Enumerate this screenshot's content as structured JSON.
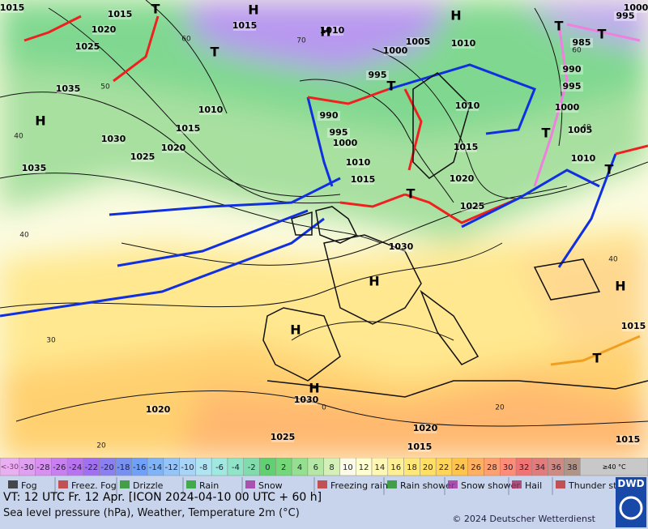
{
  "map": {
    "pressure_labels": [
      1015,
      1015,
      1020,
      1025,
      1015,
      1010,
      1005,
      1010,
      1000,
      995,
      1000,
      985,
      990,
      995,
      1000,
      1005,
      1010,
      995,
      1035,
      1010,
      990,
      1015,
      995,
      1030,
      1000,
      1020,
      1025,
      1010,
      1035,
      1010,
      1015,
      1015,
      1020,
      1025,
      1030,
      1015,
      1030,
      1020,
      1020,
      1025,
      1015,
      1015
    ],
    "centers": [
      "H",
      "H",
      "H",
      "H",
      "H",
      "H",
      "H",
      "H",
      "T",
      "T",
      "T",
      "T",
      "T",
      "T",
      "T",
      "T",
      "T"
    ],
    "temperature_labels": [
      "60",
      "70",
      "50",
      "40",
      "40",
      "30",
      "20",
      "0",
      "20",
      "40",
      "60",
      "40"
    ]
  },
  "scale": {
    "below": "<-30",
    "above": "≥40 °C",
    "steps": [
      {
        "value": -30,
        "color": "#e0a0f0"
      },
      {
        "value": -28,
        "color": "#d890f0"
      },
      {
        "value": -26,
        "color": "#c880f0"
      },
      {
        "value": -24,
        "color": "#b874f0"
      },
      {
        "value": -22,
        "color": "#a070f0"
      },
      {
        "value": -20,
        "color": "#8c80f0"
      },
      {
        "value": -18,
        "color": "#7890f0"
      },
      {
        "value": -16,
        "color": "#70a0f8"
      },
      {
        "value": -14,
        "color": "#80b4f8"
      },
      {
        "value": -12,
        "color": "#94c4f8"
      },
      {
        "value": -10,
        "color": "#a8d4f8"
      },
      {
        "value": -8,
        "color": "#b0e4f0"
      },
      {
        "value": -6,
        "color": "#a0e8e0"
      },
      {
        "value": -4,
        "color": "#90e4c8"
      },
      {
        "value": -2,
        "color": "#80dcac"
      },
      {
        "value": 0,
        "color": "#60d070"
      },
      {
        "value": 2,
        "color": "#74d878"
      },
      {
        "value": 4,
        "color": "#94e090"
      },
      {
        "value": 6,
        "color": "#b4e8a4"
      },
      {
        "value": 8,
        "color": "#d4f0b8"
      },
      {
        "value": 10,
        "color": "#fbfbe8"
      },
      {
        "value": 12,
        "color": "#ffffd0"
      },
      {
        "value": 14,
        "color": "#fff8b4"
      },
      {
        "value": 16,
        "color": "#fff094"
      },
      {
        "value": 18,
        "color": "#ffe878"
      },
      {
        "value": 20,
        "color": "#ffe064"
      },
      {
        "value": 22,
        "color": "#ffd458"
      },
      {
        "value": 24,
        "color": "#ffc44c"
      },
      {
        "value": 26,
        "color": "#ffb060"
      },
      {
        "value": 28,
        "color": "#ffa070"
      },
      {
        "value": 30,
        "color": "#ff8c78"
      },
      {
        "value": 32,
        "color": "#f07474"
      },
      {
        "value": 34,
        "color": "#e07c7c"
      },
      {
        "value": 36,
        "color": "#d08a84"
      },
      {
        "value": 38,
        "color": "#b09488"
      }
    ]
  },
  "legend": [
    "Fog",
    "Freez. Fog",
    "Drizzle",
    "Rain",
    "Snow",
    "Freezing rain",
    "Rain shower",
    "Snow shower",
    "Hail",
    "Thunder storm"
  ],
  "logo": "DWD",
  "footer": {
    "valid_time": "VT: 12 UTC Fr.  12 Apr. [ICON 2024-04-10  00 UTC + 60 h]",
    "description": "Sea level pressure (hPa), Weather, Temperature 2m (°C)",
    "copyright": "© 2024 Deutscher Wetterdienst"
  }
}
